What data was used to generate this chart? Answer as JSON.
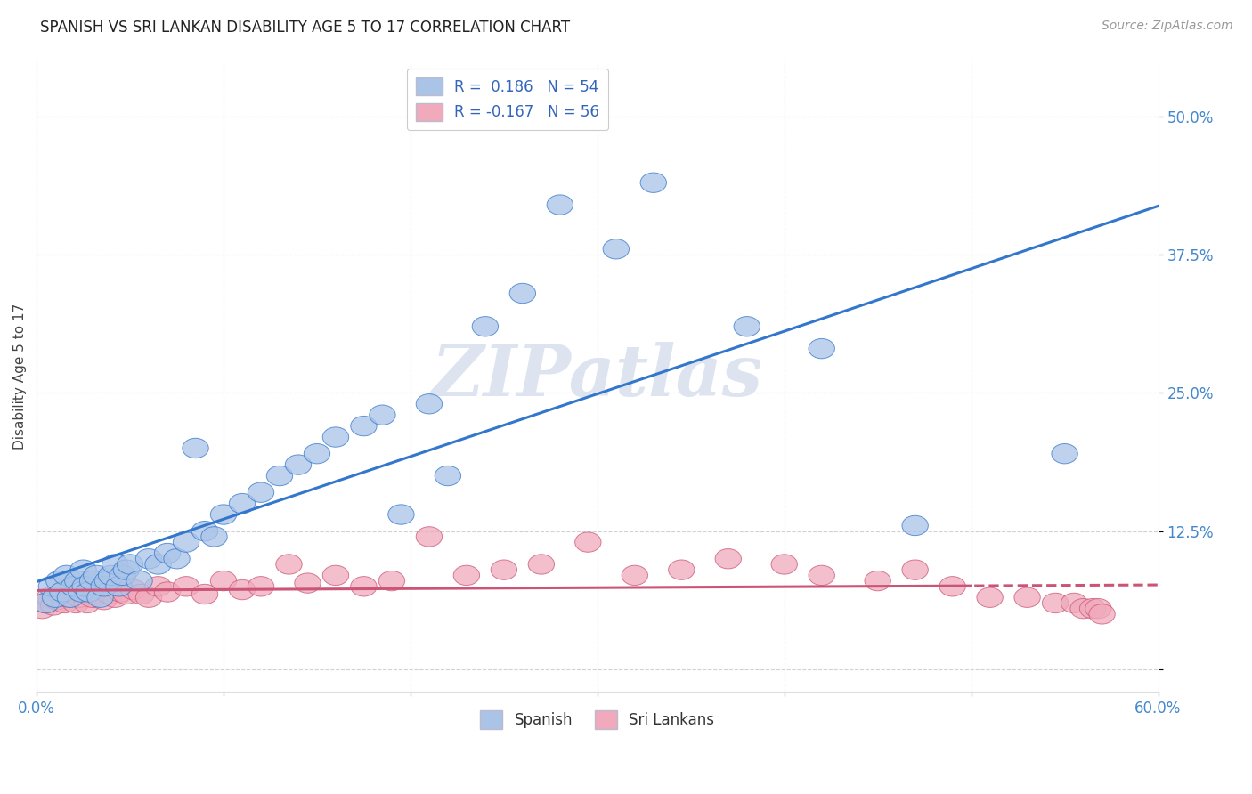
{
  "title": "SPANISH VS SRI LANKAN DISABILITY AGE 5 TO 17 CORRELATION CHART",
  "source_text": "Source: ZipAtlas.com",
  "ylabel": "Disability Age 5 to 17",
  "xlim": [
    0.0,
    0.6
  ],
  "ylim": [
    -0.02,
    0.55
  ],
  "ytick_positions": [
    0.0,
    0.125,
    0.25,
    0.375,
    0.5
  ],
  "ytick_labels": [
    "",
    "12.5%",
    "25.0%",
    "37.5%",
    "50.0%"
  ],
  "xtick_vals": [
    0.0,
    0.1,
    0.2,
    0.3,
    0.4,
    0.5,
    0.6
  ],
  "xticklabels": [
    "0.0%",
    "",
    "",
    "",
    "",
    "",
    "60.0%"
  ],
  "background_color": "#ffffff",
  "grid_color": "#d0d0d8",
  "spanish_color": "#aac4e8",
  "srilanka_color": "#f0aabb",
  "spanish_line_color": "#3377cc",
  "srilanka_line_color": "#cc5577",
  "spanish_x": [
    0.005,
    0.008,
    0.01,
    0.012,
    0.014,
    0.016,
    0.018,
    0.02,
    0.022,
    0.024,
    0.025,
    0.026,
    0.028,
    0.03,
    0.032,
    0.034,
    0.036,
    0.038,
    0.04,
    0.042,
    0.044,
    0.046,
    0.048,
    0.05,
    0.055,
    0.06,
    0.065,
    0.07,
    0.075,
    0.08,
    0.085,
    0.09,
    0.095,
    0.1,
    0.11,
    0.12,
    0.13,
    0.14,
    0.15,
    0.16,
    0.175,
    0.185,
    0.195,
    0.21,
    0.22,
    0.24,
    0.26,
    0.28,
    0.31,
    0.33,
    0.38,
    0.42,
    0.47,
    0.55
  ],
  "spanish_y": [
    0.06,
    0.075,
    0.065,
    0.08,
    0.07,
    0.085,
    0.065,
    0.075,
    0.08,
    0.07,
    0.09,
    0.075,
    0.07,
    0.08,
    0.085,
    0.065,
    0.075,
    0.08,
    0.085,
    0.095,
    0.075,
    0.085,
    0.09,
    0.095,
    0.08,
    0.1,
    0.095,
    0.105,
    0.1,
    0.115,
    0.2,
    0.125,
    0.12,
    0.14,
    0.15,
    0.16,
    0.175,
    0.185,
    0.195,
    0.21,
    0.22,
    0.23,
    0.14,
    0.24,
    0.175,
    0.31,
    0.34,
    0.42,
    0.38,
    0.44,
    0.31,
    0.29,
    0.13,
    0.195
  ],
  "srilanka_x": [
    0.003,
    0.005,
    0.007,
    0.009,
    0.011,
    0.013,
    0.015,
    0.017,
    0.019,
    0.021,
    0.023,
    0.025,
    0.027,
    0.03,
    0.033,
    0.036,
    0.039,
    0.042,
    0.045,
    0.048,
    0.052,
    0.056,
    0.06,
    0.065,
    0.07,
    0.08,
    0.09,
    0.1,
    0.11,
    0.12,
    0.135,
    0.145,
    0.16,
    0.175,
    0.19,
    0.21,
    0.23,
    0.25,
    0.27,
    0.295,
    0.32,
    0.345,
    0.37,
    0.4,
    0.42,
    0.45,
    0.47,
    0.49,
    0.51,
    0.53,
    0.545,
    0.555,
    0.56,
    0.565,
    0.568,
    0.57
  ],
  "srilanka_y": [
    0.055,
    0.06,
    0.065,
    0.058,
    0.063,
    0.068,
    0.06,
    0.065,
    0.07,
    0.06,
    0.065,
    0.068,
    0.06,
    0.065,
    0.068,
    0.063,
    0.068,
    0.065,
    0.07,
    0.068,
    0.072,
    0.068,
    0.065,
    0.075,
    0.07,
    0.075,
    0.068,
    0.08,
    0.072,
    0.075,
    0.095,
    0.078,
    0.085,
    0.075,
    0.08,
    0.12,
    0.085,
    0.09,
    0.095,
    0.115,
    0.085,
    0.09,
    0.1,
    0.095,
    0.085,
    0.08,
    0.09,
    0.075,
    0.065,
    0.065,
    0.06,
    0.06,
    0.055,
    0.055,
    0.055,
    0.05
  ]
}
